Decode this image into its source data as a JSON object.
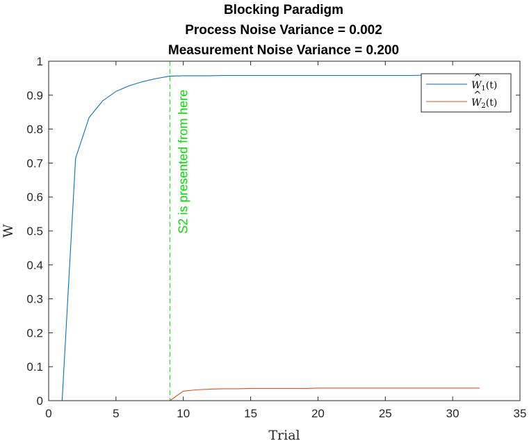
{
  "chart_data": {
    "type": "line",
    "title": [
      "Blocking Paradigm",
      "Process Noise Variance = 0.002",
      "Measurement Noise Variance = 0.200"
    ],
    "xlabel": "Trial",
    "ylabel": "W",
    "xlim": [
      0,
      35
    ],
    "ylim": [
      0,
      1
    ],
    "xticks": [
      0,
      5,
      10,
      15,
      20,
      25,
      30,
      35
    ],
    "yticks": [
      0,
      0.1,
      0.2,
      0.3,
      0.4,
      0.5,
      0.6,
      0.7,
      0.8,
      0.9,
      1
    ],
    "grid": false,
    "legend_position": "top-right",
    "series": [
      {
        "name": "W1",
        "color": "#0072BD",
        "x": [
          1,
          2,
          3,
          4,
          5,
          6,
          7,
          8,
          9,
          10,
          11,
          12,
          13,
          14,
          15,
          16,
          17,
          18,
          19,
          20,
          21,
          22,
          23,
          24,
          25,
          26,
          27,
          28,
          29,
          30,
          31,
          32
        ],
        "y": [
          0,
          0.714,
          0.834,
          0.883,
          0.911,
          0.928,
          0.94,
          0.949,
          0.956,
          0.957,
          0.957,
          0.957,
          0.958,
          0.958,
          0.958,
          0.958,
          0.958,
          0.958,
          0.958,
          0.958,
          0.958,
          0.958,
          0.958,
          0.958,
          0.958,
          0.958,
          0.958,
          0.959,
          0.959,
          0.959,
          0.959,
          0.959
        ]
      },
      {
        "name": "W2",
        "color": "#D95319",
        "x": [
          9,
          10,
          11,
          12,
          13,
          14,
          15,
          16,
          17,
          18,
          19,
          20,
          21,
          22,
          23,
          24,
          25,
          26,
          27,
          28,
          29,
          30,
          31,
          32
        ],
        "y": [
          0,
          0.028,
          0.032,
          0.034,
          0.035,
          0.035,
          0.036,
          0.036,
          0.036,
          0.036,
          0.036,
          0.037,
          0.037,
          0.037,
          0.037,
          0.037,
          0.037,
          0.037,
          0.037,
          0.037,
          0.037,
          0.037,
          0.037,
          0.037
        ]
      }
    ],
    "annotations": [
      {
        "type": "vline",
        "x": 9,
        "color": "#00E000",
        "style": "dashed",
        "text": "S2 is presented from here"
      }
    ]
  }
}
